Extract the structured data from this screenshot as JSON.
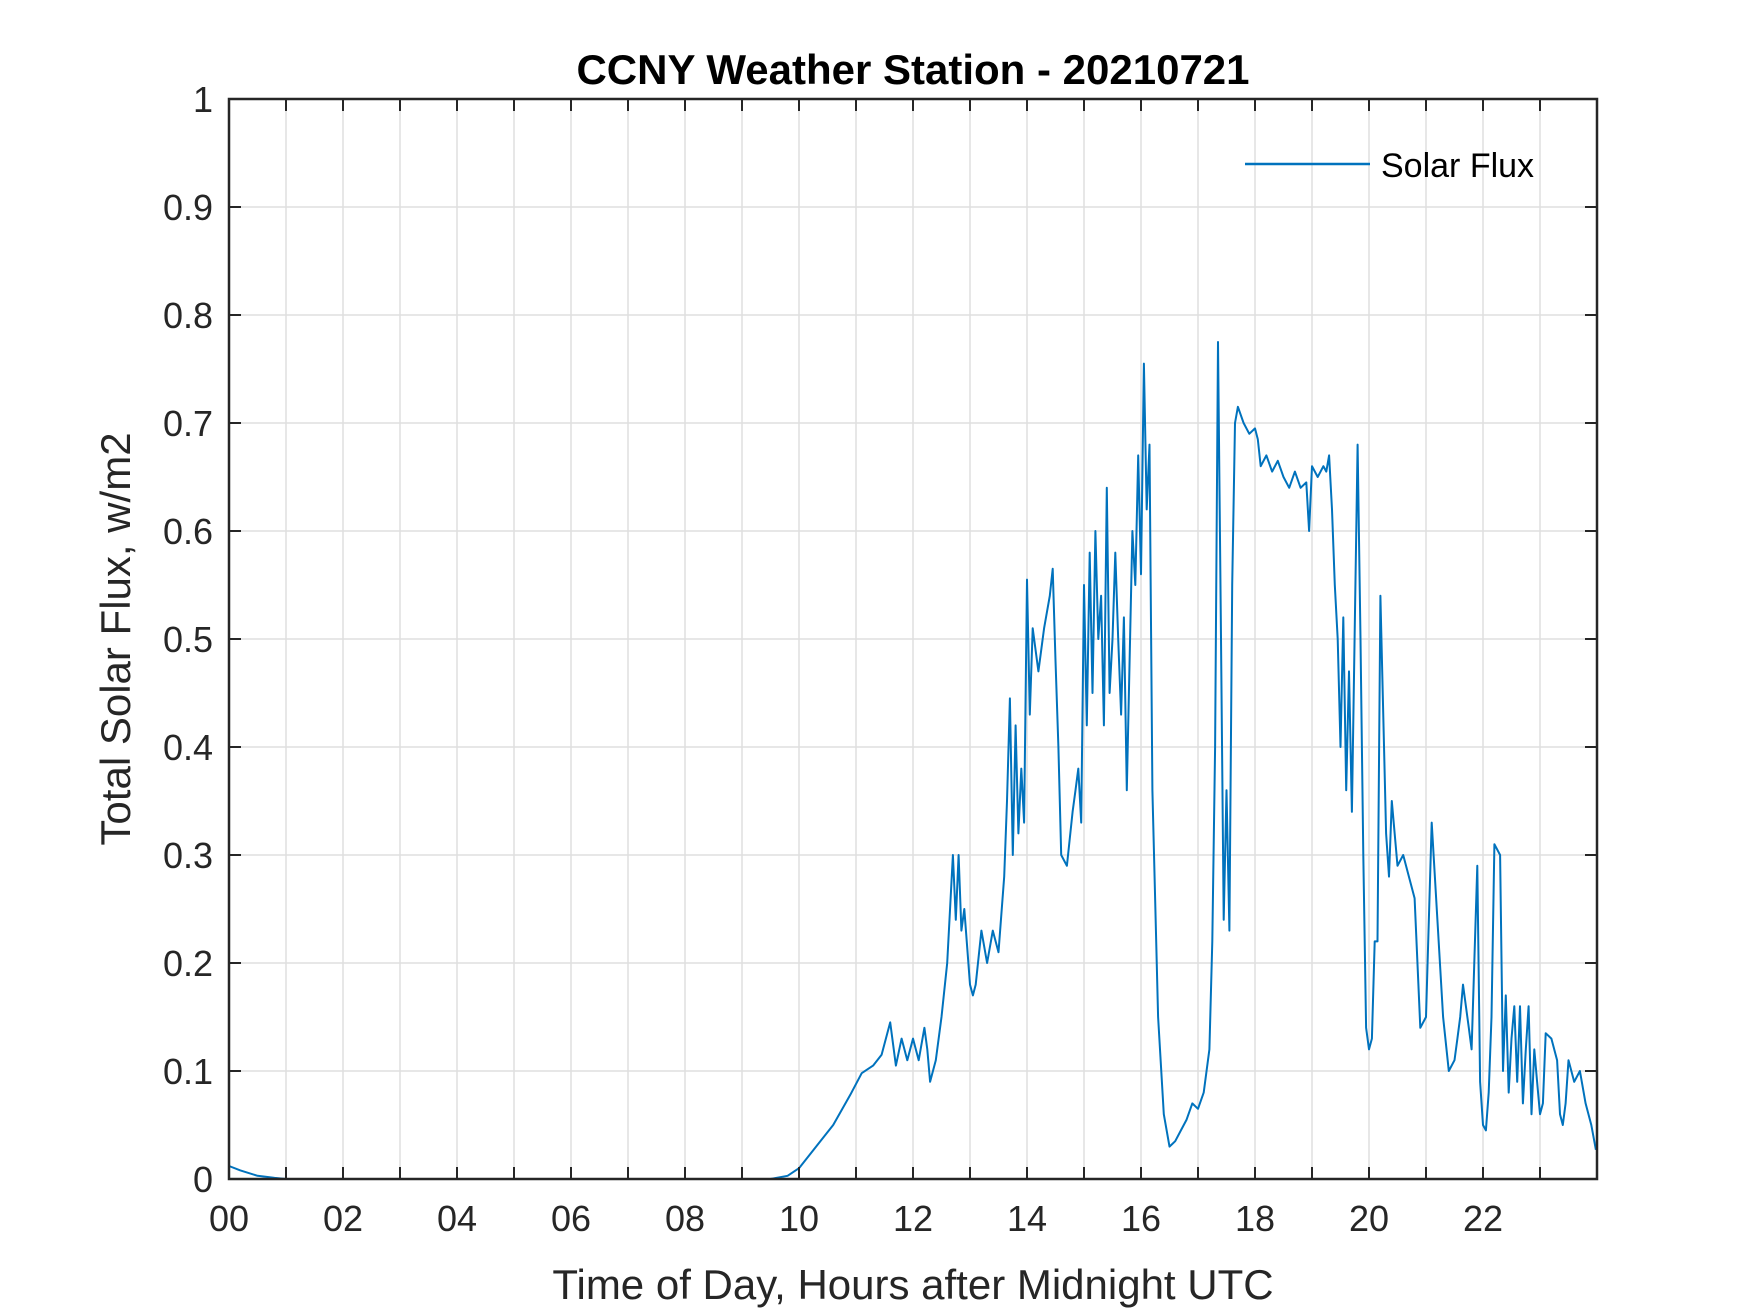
{
  "chart_data": {
    "type": "line",
    "title": "CCNY Weather Station - 20210721",
    "xlabel": "Time of Day, Hours after Midnight UTC",
    "ylabel": "Total Solar Flux, w/m2",
    "xlim": [
      0,
      24
    ],
    "ylim": [
      0,
      1
    ],
    "grid": true,
    "legend_position": "top-right",
    "x_ticks": [
      0,
      2,
      4,
      6,
      8,
      10,
      12,
      14,
      16,
      18,
      20,
      22
    ],
    "x_tick_labels": [
      "00",
      "02",
      "04",
      "06",
      "08",
      "10",
      "12",
      "14",
      "16",
      "18",
      "20",
      "22"
    ],
    "y_ticks": [
      0,
      0.1,
      0.2,
      0.3,
      0.4,
      0.5,
      0.6,
      0.7,
      0.8,
      0.9,
      1
    ],
    "y_tick_labels": [
      "0",
      "0.1",
      "0.2",
      "0.3",
      "0.4",
      "0.5",
      "0.6",
      "0.7",
      "0.8",
      "0.9",
      "1"
    ],
    "series": [
      {
        "name": "Solar Flux",
        "color": "#0072BD",
        "x": [
          0,
          0.2,
          0.5,
          0.8,
          1.0,
          9.5,
          9.8,
          10.0,
          10.3,
          10.6,
          10.9,
          11.1,
          11.3,
          11.45,
          11.6,
          11.7,
          11.8,
          11.9,
          12.0,
          12.1,
          12.2,
          12.25,
          12.3,
          12.4,
          12.5,
          12.6,
          12.7,
          12.75,
          12.8,
          12.85,
          12.9,
          13.0,
          13.05,
          13.1,
          13.2,
          13.3,
          13.4,
          13.5,
          13.6,
          13.65,
          13.7,
          13.75,
          13.8,
          13.85,
          13.9,
          13.95,
          14.0,
          14.05,
          14.1,
          14.2,
          14.3,
          14.4,
          14.45,
          14.5,
          14.55,
          14.6,
          14.7,
          14.8,
          14.85,
          14.9,
          14.95,
          15.0,
          15.05,
          15.1,
          15.15,
          15.2,
          15.25,
          15.3,
          15.35,
          15.4,
          15.45,
          15.5,
          15.55,
          15.6,
          15.65,
          15.7,
          15.75,
          15.8,
          15.85,
          15.9,
          15.95,
          16.0,
          16.05,
          16.1,
          16.15,
          16.2,
          16.3,
          16.4,
          16.5,
          16.6,
          16.7,
          16.8,
          16.9,
          17.0,
          17.1,
          17.2,
          17.25,
          17.3,
          17.35,
          17.4,
          17.45,
          17.5,
          17.55,
          17.6,
          17.65,
          17.7,
          17.8,
          17.9,
          18.0,
          18.05,
          18.1,
          18.2,
          18.3,
          18.4,
          18.5,
          18.6,
          18.7,
          18.8,
          18.9,
          18.95,
          19.0,
          19.1,
          19.2,
          19.25,
          19.3,
          19.35,
          19.4,
          19.45,
          19.5,
          19.55,
          19.6,
          19.65,
          19.7,
          19.8,
          19.85,
          19.9,
          19.95,
          20.0,
          20.05,
          20.1,
          20.15,
          20.2,
          20.3,
          20.35,
          20.4,
          20.5,
          20.6,
          20.7,
          20.8,
          20.9,
          21.0,
          21.1,
          21.2,
          21.3,
          21.4,
          21.5,
          21.55,
          21.6,
          21.65,
          21.7,
          21.75,
          21.8,
          21.9,
          21.95,
          22.0,
          22.05,
          22.1,
          22.15,
          22.2,
          22.3,
          22.35,
          22.4,
          22.45,
          22.5,
          22.55,
          22.6,
          22.65,
          22.7,
          22.75,
          22.8,
          22.85,
          22.9,
          22.95,
          23.0,
          23.05,
          23.1,
          23.2,
          23.3,
          23.35,
          23.4,
          23.45,
          23.5,
          23.6,
          23.7,
          23.8,
          23.9,
          23.98
        ],
        "y": [
          0.012,
          0.008,
          0.003,
          0.001,
          0,
          0,
          0.003,
          0.01,
          0.03,
          0.05,
          0.078,
          0.098,
          0.105,
          0.115,
          0.145,
          0.105,
          0.13,
          0.11,
          0.13,
          0.11,
          0.14,
          0.12,
          0.09,
          0.11,
          0.15,
          0.2,
          0.3,
          0.24,
          0.3,
          0.23,
          0.25,
          0.18,
          0.17,
          0.18,
          0.23,
          0.2,
          0.23,
          0.21,
          0.28,
          0.35,
          0.445,
          0.3,
          0.42,
          0.32,
          0.38,
          0.33,
          0.555,
          0.43,
          0.51,
          0.47,
          0.51,
          0.54,
          0.565,
          0.48,
          0.4,
          0.3,
          0.29,
          0.34,
          0.36,
          0.38,
          0.33,
          0.55,
          0.42,
          0.58,
          0.45,
          0.6,
          0.5,
          0.54,
          0.42,
          0.64,
          0.45,
          0.5,
          0.58,
          0.5,
          0.43,
          0.52,
          0.36,
          0.48,
          0.6,
          0.55,
          0.67,
          0.56,
          0.755,
          0.62,
          0.68,
          0.36,
          0.15,
          0.06,
          0.03,
          0.035,
          0.045,
          0.055,
          0.07,
          0.065,
          0.08,
          0.12,
          0.22,
          0.4,
          0.775,
          0.52,
          0.24,
          0.36,
          0.23,
          0.55,
          0.7,
          0.715,
          0.7,
          0.69,
          0.695,
          0.685,
          0.66,
          0.67,
          0.655,
          0.665,
          0.65,
          0.64,
          0.655,
          0.64,
          0.645,
          0.6,
          0.66,
          0.65,
          0.66,
          0.655,
          0.67,
          0.62,
          0.55,
          0.5,
          0.4,
          0.52,
          0.36,
          0.47,
          0.34,
          0.68,
          0.5,
          0.3,
          0.14,
          0.12,
          0.13,
          0.22,
          0.22,
          0.54,
          0.32,
          0.28,
          0.35,
          0.29,
          0.3,
          0.28,
          0.26,
          0.14,
          0.15,
          0.33,
          0.24,
          0.15,
          0.1,
          0.11,
          0.13,
          0.15,
          0.18,
          0.16,
          0.14,
          0.12,
          0.29,
          0.09,
          0.05,
          0.045,
          0.08,
          0.15,
          0.31,
          0.3,
          0.1,
          0.17,
          0.08,
          0.13,
          0.16,
          0.09,
          0.16,
          0.07,
          0.12,
          0.16,
          0.06,
          0.12,
          0.09,
          0.06,
          0.07,
          0.135,
          0.13,
          0.11,
          0.06,
          0.05,
          0.07,
          0.11,
          0.09,
          0.1,
          0.07,
          0.05,
          0.027
        ]
      }
    ]
  }
}
